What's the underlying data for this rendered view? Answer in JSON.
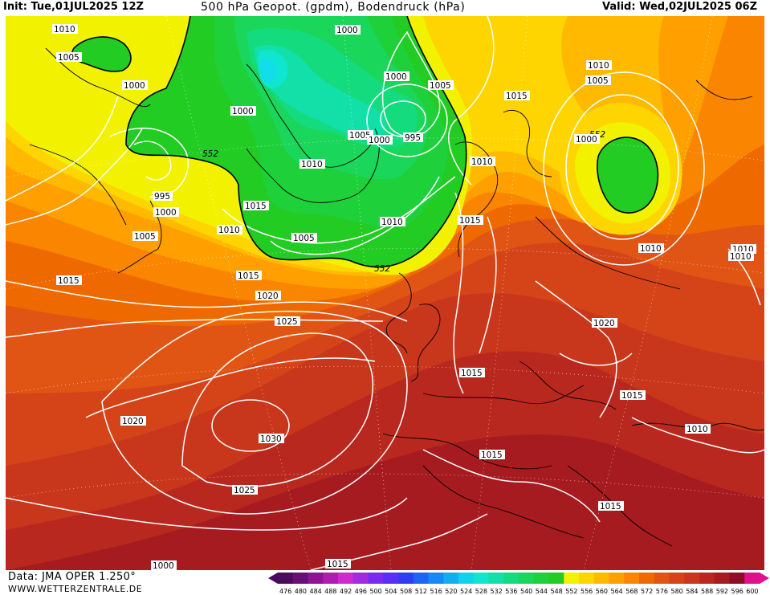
{
  "header": {
    "init": "Init: Tue,01JUL2025 12Z",
    "title": "500 hPa Geopot. (gpdm), Bodendruck (hPa)",
    "valid": "Valid: Wed,02JUL2025 06Z"
  },
  "footer": {
    "source": "Data: JMA OPER 1.250°",
    "website": "WWW.WETTERZENTRALE.DE"
  },
  "colorbar": {
    "levels": [
      "476",
      "480",
      "484",
      "488",
      "492",
      "496",
      "500",
      "504",
      "508",
      "512",
      "516",
      "520",
      "524",
      "528",
      "532",
      "536",
      "540",
      "544",
      "548",
      "552",
      "556",
      "560",
      "564",
      "568",
      "572",
      "576",
      "580",
      "584",
      "588",
      "592",
      "596",
      "600"
    ],
    "colors": [
      "#4b0a5e",
      "#6a0f7a",
      "#8f1395",
      "#b21bb0",
      "#cf2ad0",
      "#a02be0",
      "#7b2bef",
      "#5a2ef5",
      "#2f3cf2",
      "#1f63f5",
      "#1789f4",
      "#12aef0",
      "#0fd2ec",
      "#10e5d0",
      "#12e0a8",
      "#14db7e",
      "#1ad65a",
      "#1ed13a",
      "#22cc22",
      "#f2f200",
      "#ffd500",
      "#ffba00",
      "#ff9f00",
      "#f98500",
      "#ee6a00",
      "#e05514",
      "#d44418",
      "#c8361c",
      "#b9281e",
      "#a51b20",
      "#8e0d22",
      "#e0108f"
    ],
    "label_color": "#000000"
  },
  "map": {
    "label": "500 hPa geopotential and surface pressure map of the North Atlantic and Europe",
    "contour_color": "#ffffff",
    "isobar_labels": [
      "1010",
      "1005",
      "1000",
      "552",
      "1000",
      "1005",
      "1000",
      "1000",
      "1005",
      "1010",
      "995",
      "1015",
      "1000",
      "1010",
      "552",
      "995",
      "1000",
      "1005",
      "1010",
      "1010",
      "1015",
      "1015",
      "1005",
      "1010",
      "552",
      "1010",
      "1015",
      "1005",
      "1020",
      "1025",
      "1015",
      "1030",
      "1020",
      "1025",
      "1015",
      "1010",
      "1015",
      "1020",
      "1015",
      "1010",
      "1015",
      "1015",
      "1010",
      "1000",
      "1000"
    ]
  }
}
